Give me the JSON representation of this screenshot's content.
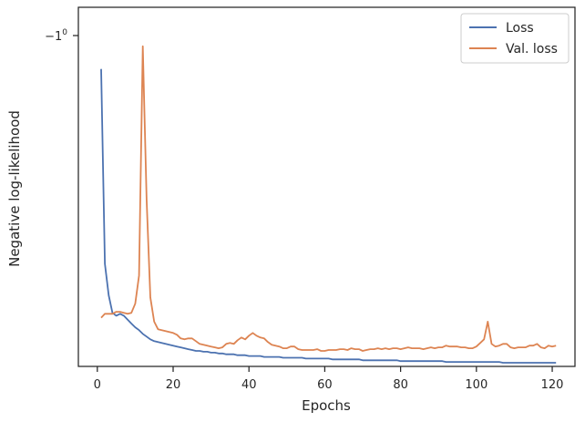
{
  "chart_data": {
    "type": "line",
    "title": "",
    "xlabel": "Epochs",
    "ylabel": "Negative log-likelihood",
    "xlim": [
      -5,
      126
    ],
    "x_ticks": [
      "0",
      "20",
      "40",
      "60",
      "80",
      "100",
      "120"
    ],
    "x_tick_values": [
      0,
      20,
      40,
      60,
      80,
      100,
      120
    ],
    "y_ticks": [
      {
        "label": "−1",
        "exponent": "0",
        "value": -1.0
      }
    ],
    "y_scale": "symlog (negative values)",
    "grid": false,
    "legend_position": "top-right",
    "series": [
      {
        "name": "Loss",
        "color": "#4c72b0",
        "x": [
          1,
          2,
          3,
          4,
          5,
          6,
          7,
          8,
          9,
          10,
          11,
          12,
          13,
          14,
          15,
          16,
          17,
          18,
          19,
          20,
          21,
          22,
          23,
          24,
          25,
          26,
          27,
          28,
          29,
          30,
          31,
          32,
          33,
          34,
          35,
          36,
          37,
          38,
          39,
          40,
          41,
          42,
          43,
          44,
          45,
          46,
          47,
          48,
          49,
          50,
          51,
          52,
          53,
          54,
          55,
          56,
          57,
          58,
          59,
          60,
          61,
          62,
          63,
          64,
          65,
          66,
          67,
          68,
          69,
          70,
          71,
          72,
          73,
          74,
          75,
          76,
          77,
          78,
          79,
          80,
          81,
          82,
          83,
          84,
          85,
          86,
          87,
          88,
          89,
          90,
          91,
          92,
          93,
          94,
          95,
          96,
          97,
          98,
          99,
          100,
          101,
          102,
          103,
          104,
          105,
          106,
          107,
          108,
          109,
          110,
          111,
          112,
          113,
          114,
          115,
          116,
          117,
          118,
          119,
          120,
          121
        ],
        "y": [
          -1.13,
          -2.3,
          -2.58,
          -2.75,
          -2.78,
          -2.76,
          -2.78,
          -2.82,
          -2.86,
          -2.9,
          -2.93,
          -2.97,
          -3.0,
          -3.03,
          -3.05,
          -3.06,
          -3.07,
          -3.08,
          -3.09,
          -3.1,
          -3.11,
          -3.12,
          -3.13,
          -3.14,
          -3.15,
          -3.16,
          -3.16,
          -3.17,
          -3.17,
          -3.18,
          -3.18,
          -3.19,
          -3.19,
          -3.2,
          -3.2,
          -3.2,
          -3.21,
          -3.21,
          -3.21,
          -3.22,
          -3.22,
          -3.22,
          -3.22,
          -3.23,
          -3.23,
          -3.23,
          -3.23,
          -3.23,
          -3.24,
          -3.24,
          -3.24,
          -3.24,
          -3.24,
          -3.24,
          -3.25,
          -3.25,
          -3.25,
          -3.25,
          -3.25,
          -3.25,
          -3.25,
          -3.26,
          -3.26,
          -3.26,
          -3.26,
          -3.26,
          -3.26,
          -3.26,
          -3.26,
          -3.27,
          -3.27,
          -3.27,
          -3.27,
          -3.27,
          -3.27,
          -3.27,
          -3.27,
          -3.27,
          -3.27,
          -3.28,
          -3.28,
          -3.28,
          -3.28,
          -3.28,
          -3.28,
          -3.28,
          -3.28,
          -3.28,
          -3.28,
          -3.28,
          -3.28,
          -3.29,
          -3.29,
          -3.29,
          -3.29,
          -3.29,
          -3.29,
          -3.29,
          -3.29,
          -3.29,
          -3.29,
          -3.29,
          -3.29,
          -3.29,
          -3.29,
          -3.29,
          -3.3,
          -3.3,
          -3.3,
          -3.3,
          -3.3,
          -3.3,
          -3.3,
          -3.3,
          -3.3,
          -3.3,
          -3.3,
          -3.3,
          -3.3,
          -3.3,
          -3.3
        ]
      },
      {
        "name": "Val. loss",
        "color": "#dd8452",
        "x": [
          1,
          2,
          3,
          4,
          5,
          6,
          7,
          8,
          9,
          10,
          11,
          12,
          13,
          14,
          15,
          16,
          17,
          18,
          19,
          20,
          21,
          22,
          23,
          24,
          25,
          26,
          27,
          28,
          29,
          30,
          31,
          32,
          33,
          34,
          35,
          36,
          37,
          38,
          39,
          40,
          41,
          42,
          43,
          44,
          45,
          46,
          47,
          48,
          49,
          50,
          51,
          52,
          53,
          54,
          55,
          56,
          57,
          58,
          59,
          60,
          61,
          62,
          63,
          64,
          65,
          66,
          67,
          68,
          69,
          70,
          71,
          72,
          73,
          74,
          75,
          76,
          77,
          78,
          79,
          80,
          81,
          82,
          83,
          84,
          85,
          86,
          87,
          88,
          89,
          90,
          91,
          92,
          93,
          94,
          95,
          96,
          97,
          98,
          99,
          100,
          101,
          102,
          103,
          104,
          105,
          106,
          107,
          108,
          109,
          110,
          111,
          112,
          113,
          114,
          115,
          116,
          117,
          118,
          119,
          120,
          121
        ],
        "y": [
          -2.8,
          -2.76,
          -2.76,
          -2.76,
          -2.74,
          -2.74,
          -2.75,
          -2.76,
          -2.75,
          -2.66,
          -2.4,
          -1.04,
          -1.82,
          -2.6,
          -2.84,
          -2.92,
          -2.93,
          -2.94,
          -2.95,
          -2.96,
          -2.98,
          -3.02,
          -3.03,
          -3.02,
          -3.02,
          -3.05,
          -3.08,
          -3.09,
          -3.1,
          -3.11,
          -3.12,
          -3.13,
          -3.12,
          -3.08,
          -3.07,
          -3.08,
          -3.04,
          -3.01,
          -3.03,
          -2.99,
          -2.96,
          -2.99,
          -3.01,
          -3.02,
          -3.06,
          -3.09,
          -3.1,
          -3.11,
          -3.13,
          -3.13,
          -3.11,
          -3.11,
          -3.14,
          -3.15,
          -3.15,
          -3.15,
          -3.15,
          -3.14,
          -3.16,
          -3.16,
          -3.15,
          -3.15,
          -3.15,
          -3.14,
          -3.14,
          -3.15,
          -3.13,
          -3.14,
          -3.14,
          -3.16,
          -3.15,
          -3.14,
          -3.14,
          -3.13,
          -3.14,
          -3.13,
          -3.14,
          -3.13,
          -3.13,
          -3.14,
          -3.13,
          -3.12,
          -3.13,
          -3.13,
          -3.13,
          -3.14,
          -3.13,
          -3.12,
          -3.13,
          -3.12,
          -3.12,
          -3.1,
          -3.11,
          -3.11,
          -3.11,
          -3.12,
          -3.12,
          -3.13,
          -3.13,
          -3.11,
          -3.07,
          -3.03,
          -2.84,
          -3.08,
          -3.11,
          -3.1,
          -3.08,
          -3.08,
          -3.12,
          -3.13,
          -3.12,
          -3.12,
          -3.12,
          -3.1,
          -3.1,
          -3.08,
          -3.12,
          -3.13,
          -3.1,
          -3.11,
          -3.1
        ]
      }
    ]
  }
}
